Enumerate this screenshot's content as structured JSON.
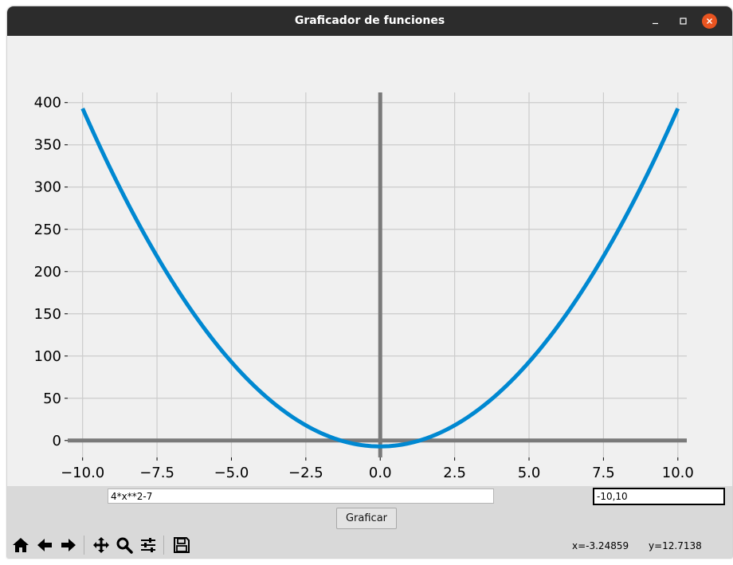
{
  "window": {
    "title": "Graficador de funciones",
    "close_color": "#e95420"
  },
  "inputs": {
    "function": "4*x**2-7",
    "range": "-10,10"
  },
  "buttons": {
    "graph_label": "Graficar"
  },
  "toolbar": {
    "items": [
      "home-icon",
      "back-arrow-icon",
      "forward-arrow-icon",
      "pan-icon",
      "zoom-icon",
      "configure-subplots-icon",
      "save-icon"
    ]
  },
  "status": {
    "x_readout": "x=-3.24859",
    "y_readout": "y=12.7138"
  },
  "chart_data": {
    "type": "line",
    "function": "4*x**2-7",
    "x_range": [
      -10,
      10
    ],
    "xlim": [
      -10.5,
      10.3
    ],
    "ylim": [
      -20,
      412
    ],
    "xticks": [
      -10,
      -7.5,
      -5,
      -2.5,
      0,
      2.5,
      5,
      7.5,
      10
    ],
    "yticks": [
      0,
      50,
      100,
      150,
      200,
      250,
      300,
      350,
      400
    ],
    "xtick_labels": [
      "−10.0",
      "−7.5",
      "−5.0",
      "−2.5",
      "0.0",
      "2.5",
      "5.0",
      "7.5",
      "10.0"
    ],
    "ytick_labels": [
      "0",
      "50",
      "100",
      "150",
      "200",
      "250",
      "300",
      "350",
      "400"
    ],
    "grid": true,
    "line_color": "#0088d1",
    "axis_line_color": "#7a7a7a",
    "grid_color": "#cccccc",
    "series": [
      {
        "x": [
          -10,
          -9,
          -8,
          -7,
          -6,
          -5,
          -4,
          -3,
          -2,
          -1,
          0,
          1,
          2,
          3,
          4,
          5,
          6,
          7,
          8,
          9,
          10
        ],
        "y": [
          393,
          317,
          249,
          189,
          137,
          93,
          57,
          29,
          9,
          -3,
          -7,
          -3,
          9,
          29,
          57,
          93,
          137,
          189,
          249,
          317,
          393
        ]
      }
    ]
  }
}
